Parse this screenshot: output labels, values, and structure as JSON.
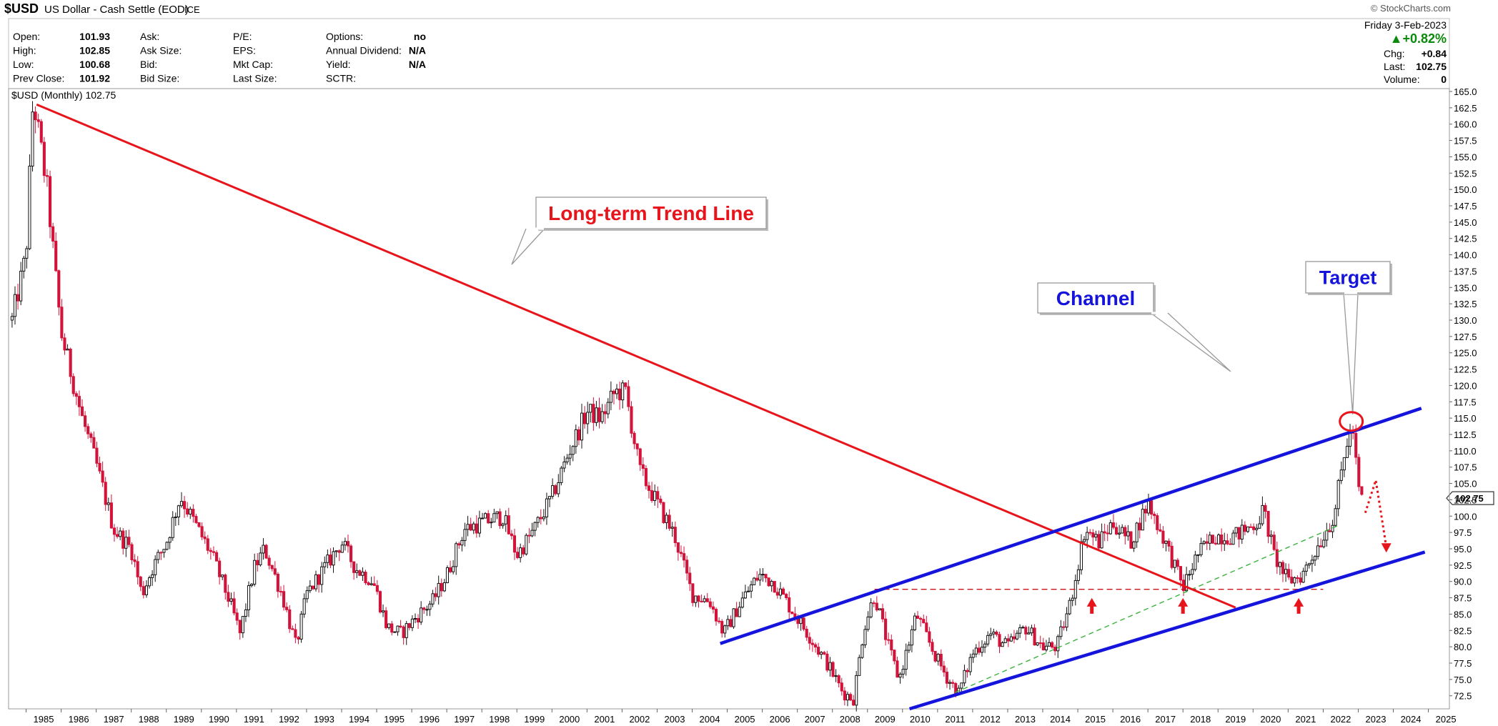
{
  "header": {
    "symbol": "$USD",
    "name": "US Dollar - Cash Settle (EOD)",
    "exchange": "ICE",
    "copyright": "© StockCharts.com",
    "date": "Friday  3-Feb-2023",
    "change_pct": "▲+0.82%",
    "chg_label": "Chg:",
    "chg_value": "+0.84",
    "last_label": "Last:",
    "last_value": "102.75",
    "volume_label": "Volume:",
    "volume_value": "0"
  },
  "stats": [
    [
      {
        "l": "Open:",
        "v": "101.93"
      },
      {
        "l": "Ask:",
        "v": ""
      },
      {
        "l": "P/E:",
        "v": ""
      },
      {
        "l": "Options:",
        "v": "no"
      }
    ],
    [
      {
        "l": "High:",
        "v": "102.85"
      },
      {
        "l": "Ask Size:",
        "v": ""
      },
      {
        "l": "EPS:",
        "v": ""
      },
      {
        "l": "Annual Dividend:",
        "v": "N/A"
      }
    ],
    [
      {
        "l": "Low:",
        "v": "100.68"
      },
      {
        "l": "Bid:",
        "v": ""
      },
      {
        "l": "Mkt Cap:",
        "v": ""
      },
      {
        "l": "Yield:",
        "v": "N/A"
      }
    ],
    [
      {
        "l": "Prev Close:",
        "v": "101.92"
      },
      {
        "l": "Bid Size:",
        "v": ""
      },
      {
        "l": "Last Size:",
        "v": ""
      },
      {
        "l": "SCTR:",
        "v": ""
      }
    ]
  ],
  "chart_data": {
    "type": "candlestick",
    "legend": "$USD (Monthly) 102.75",
    "last_price_label": "102.75",
    "x_range": [
      1984.5,
      2025.6
    ],
    "ylim": [
      70.5,
      165.0
    ],
    "y_ticks": [
      "72.5",
      "75.0",
      "77.5",
      "80.0",
      "82.5",
      "85.0",
      "87.5",
      "90.0",
      "92.5",
      "95.0",
      "97.5",
      "100.0",
      "102.5",
      "105.0",
      "107.5",
      "110.0",
      "112.5",
      "115.0",
      "117.5",
      "120.0",
      "122.5",
      "125.0",
      "127.5",
      "130.0",
      "132.5",
      "135.0",
      "137.5",
      "140.0",
      "142.5",
      "145.0",
      "147.5",
      "150.0",
      "152.5",
      "155.0",
      "157.5",
      "160.0",
      "162.5",
      "165.0"
    ],
    "x_ticks": [
      "1985",
      "1986",
      "1987",
      "1988",
      "1989",
      "1990",
      "1991",
      "1992",
      "1993",
      "1994",
      "1995",
      "1996",
      "1997",
      "1998",
      "1999",
      "2000",
      "2001",
      "2002",
      "2003",
      "2004",
      "2005",
      "2006",
      "2007",
      "2008",
      "2009",
      "2010",
      "2011",
      "2012",
      "2013",
      "2014",
      "2015",
      "2016",
      "2017",
      "2018",
      "2019",
      "2020",
      "2021",
      "2022",
      "2023",
      "2024",
      "2025"
    ],
    "price_path": [
      [
        1984.6,
        130
      ],
      [
        1985.0,
        140
      ],
      [
        1985.2,
        164
      ],
      [
        1985.6,
        150
      ],
      [
        1986.0,
        128
      ],
      [
        1986.6,
        115
      ],
      [
        1987.0,
        108
      ],
      [
        1987.5,
        98
      ],
      [
        1988.0,
        95
      ],
      [
        1988.3,
        88
      ],
      [
        1988.6,
        92
      ],
      [
        1989.0,
        96
      ],
      [
        1989.4,
        103
      ],
      [
        1989.8,
        99
      ],
      [
        1990.3,
        94
      ],
      [
        1990.8,
        87
      ],
      [
        1991.1,
        82
      ],
      [
        1991.5,
        92
      ],
      [
        1991.8,
        95
      ],
      [
        1992.3,
        88
      ],
      [
        1992.7,
        80
      ],
      [
        1993.0,
        88
      ],
      [
        1993.5,
        92
      ],
      [
        1994.0,
        96
      ],
      [
        1994.4,
        92
      ],
      [
        1994.9,
        90
      ],
      [
        1995.3,
        83
      ],
      [
        1995.7,
        82
      ],
      [
        1996.2,
        85
      ],
      [
        1996.6,
        87
      ],
      [
        1997.0,
        91
      ],
      [
        1997.5,
        98
      ],
      [
        1998.0,
        99
      ],
      [
        1998.6,
        100
      ],
      [
        1999.0,
        94
      ],
      [
        1999.5,
        98
      ],
      [
        2000.0,
        103
      ],
      [
        2000.5,
        110
      ],
      [
        2001.0,
        116
      ],
      [
        2001.4,
        115
      ],
      [
        2001.8,
        119
      ],
      [
        2002.1,
        119
      ],
      [
        2002.5,
        107
      ],
      [
        2003.0,
        102
      ],
      [
        2003.5,
        97
      ],
      [
        2004.0,
        88
      ],
      [
        2004.5,
        87
      ],
      [
        2004.9,
        82
      ],
      [
        2005.4,
        87
      ],
      [
        2005.9,
        91
      ],
      [
        2006.3,
        90
      ],
      [
        2006.8,
        86
      ],
      [
        2007.3,
        82
      ],
      [
        2007.9,
        77
      ],
      [
        2008.3,
        73
      ],
      [
        2008.6,
        72
      ],
      [
        2008.9,
        83
      ],
      [
        2009.2,
        88
      ],
      [
        2009.6,
        80
      ],
      [
        2009.9,
        75
      ],
      [
        2010.4,
        85
      ],
      [
        2010.9,
        79
      ],
      [
        2011.3,
        75
      ],
      [
        2011.6,
        73
      ],
      [
        2012.0,
        79
      ],
      [
        2012.5,
        82
      ],
      [
        2013.0,
        80
      ],
      [
        2013.5,
        83
      ],
      [
        2014.0,
        80
      ],
      [
        2014.4,
        80
      ],
      [
        2014.8,
        87
      ],
      [
        2015.2,
        98
      ],
      [
        2015.6,
        96
      ],
      [
        2016.0,
        99
      ],
      [
        2016.5,
        96
      ],
      [
        2017.0,
        102
      ],
      [
        2017.5,
        96
      ],
      [
        2018.0,
        89
      ],
      [
        2018.4,
        94
      ],
      [
        2018.9,
        97
      ],
      [
        2019.5,
        97
      ],
      [
        2020.1,
        99
      ],
      [
        2020.3,
        101
      ],
      [
        2020.6,
        94
      ],
      [
        2021.0,
        90
      ],
      [
        2021.4,
        91
      ],
      [
        2021.9,
        96
      ],
      [
        2022.3,
        100
      ],
      [
        2022.7,
        112
      ],
      [
        2022.85,
        113
      ],
      [
        2023.0,
        104
      ],
      [
        2023.1,
        102.75
      ]
    ],
    "annotations": [
      {
        "id": "trend",
        "label": "Long-term Trend Line",
        "color": "#e8141b",
        "from": [
          1985.3,
          163.0
        ],
        "to": [
          2019.5,
          86.0
        ]
      },
      {
        "id": "channel-top",
        "color": "#1414dc",
        "from": [
          2004.8,
          80.5
        ],
        "to": [
          2024.8,
          116.5
        ]
      },
      {
        "id": "channel-bottom",
        "color": "#1414dc",
        "from": [
          2010.2,
          70.5
        ],
        "to": [
          2024.9,
          94.5
        ]
      },
      {
        "id": "support",
        "color": "#c8141b",
        "style": "dashed",
        "y": 88.8,
        "from": 2009.2,
        "to": 2022.0
      },
      {
        "id": "green-guide",
        "color": "#3cb43c",
        "style": "dashed",
        "from": [
          2011.5,
          73.0
        ],
        "to": [
          2022.4,
          98.5
        ]
      },
      {
        "id": "channel-label",
        "label": "Channel",
        "color": "#1414dc"
      },
      {
        "id": "target-label",
        "label": "Target",
        "color": "#1414dc",
        "point": [
          2022.8,
          114.5
        ]
      },
      {
        "id": "arrows-up",
        "color": "#e8141b",
        "x": [
          2015.4,
          2018.0,
          2021.3
        ]
      },
      {
        "id": "projection",
        "color": "#e8141b",
        "style": "dotted",
        "path": [
          [
            2023.2,
            100.5
          ],
          [
            2023.5,
            105.5
          ],
          [
            2023.8,
            95.3
          ]
        ]
      }
    ]
  }
}
